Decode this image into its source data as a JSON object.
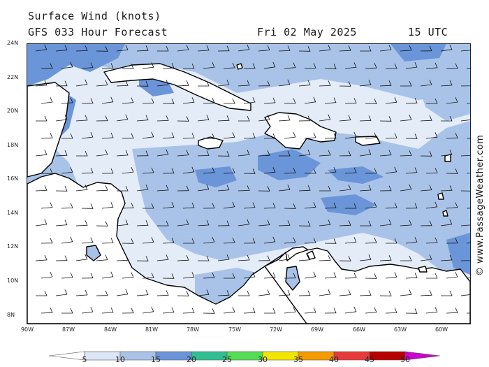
{
  "header": {
    "title": "Surface Wind (knots)",
    "model": "GFS 033 Hour Forecast",
    "date": "Fri 02 May 2025",
    "time": "15 UTC"
  },
  "credit": "© www.PassageWeather.com",
  "axes": {
    "lat_labels": [
      "24N",
      "22N",
      "20N",
      "18N",
      "16N",
      "14N",
      "12N",
      "10N",
      "8N"
    ],
    "lon_labels": [
      "90W",
      "87W",
      "84W",
      "81W",
      "78W",
      "75W",
      "72W",
      "69W",
      "66W",
      "63W",
      "60W"
    ]
  },
  "scale": {
    "labels": [
      "5",
      "10",
      "15",
      "20",
      "25",
      "30",
      "35",
      "40",
      "45",
      "50"
    ],
    "colors": [
      "#dde6f6",
      "#a9c3e8",
      "#6a95d8",
      "#2fbf90",
      "#55dd55",
      "#f2e600",
      "#f59a00",
      "#e83a3a",
      "#b80000",
      "#cc00cc"
    ]
  },
  "colors": {
    "sea_light": "#e4ecf8",
    "sea_mid": "#a9c3e8",
    "sea_strong": "#6a95d8",
    "land": "#ffffff"
  },
  "wind_direction": "easterly"
}
